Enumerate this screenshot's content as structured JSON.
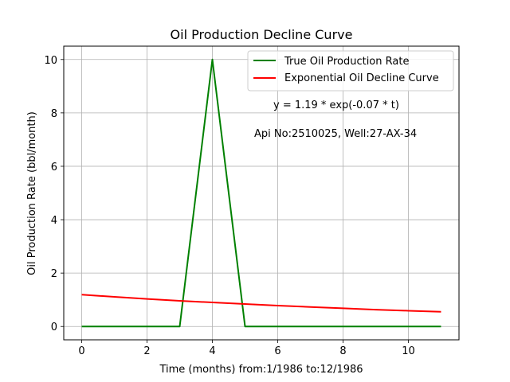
{
  "chart_data": {
    "type": "line",
    "title": "Oil Production Decline Curve",
    "xlabel": "Time (months) from:1/1986 to:12/1986",
    "ylabel": "Oil Production Rate (bbl/month)",
    "xlim": [
      -0.55,
      11.55
    ],
    "ylim": [
      -0.5,
      10.5
    ],
    "xticks": [
      0,
      2,
      4,
      6,
      8,
      10
    ],
    "yticks": [
      0,
      2,
      4,
      6,
      8,
      10
    ],
    "grid": true,
    "legend_position": "top-right",
    "x": [
      0,
      1,
      2,
      3,
      4,
      5,
      6,
      7,
      8,
      9,
      10,
      11
    ],
    "series": [
      {
        "name": "True Oil Production Rate",
        "color": "#008000",
        "values": [
          0,
          0,
          0,
          0,
          10,
          0,
          0,
          0,
          0,
          0,
          0,
          0
        ]
      },
      {
        "name": "Exponential Oil Decline Curve",
        "color": "#ff0000",
        "values": [
          1.19,
          1.11,
          1.03,
          0.96,
          0.9,
          0.84,
          0.78,
          0.73,
          0.68,
          0.63,
          0.59,
          0.55
        ]
      }
    ],
    "annotations": [
      {
        "text": "y = 1.19 * exp(-0.07 * t)"
      },
      {
        "text": "Api No:2510025, Well:27-AX-34"
      }
    ]
  }
}
